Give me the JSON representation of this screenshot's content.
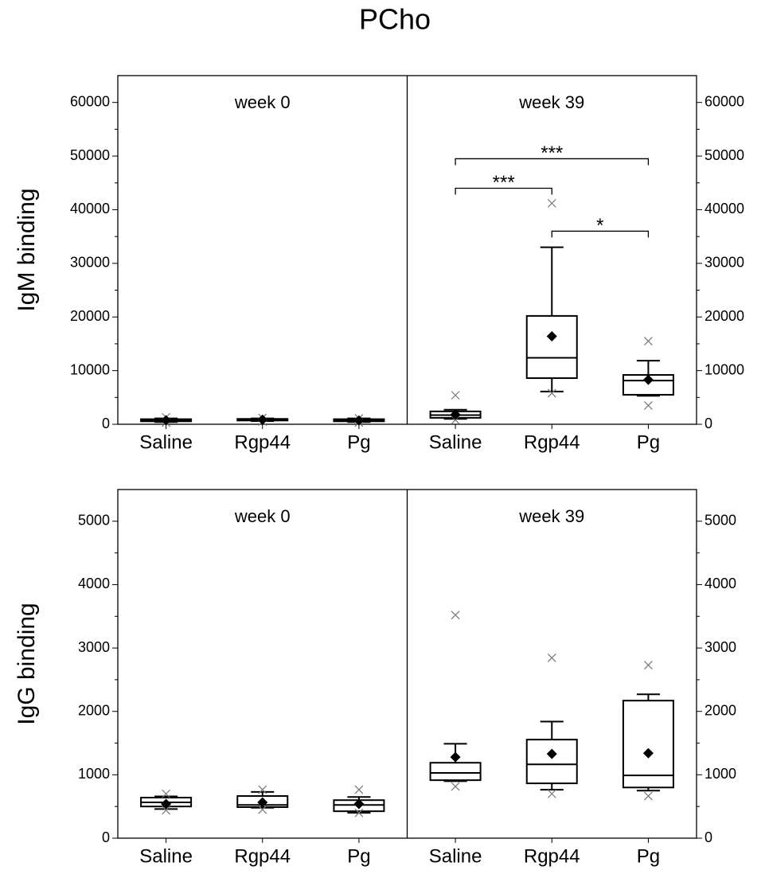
{
  "title": "PCho",
  "chart_data": [
    {
      "type": "box",
      "ylabel": "IgM binding",
      "ylim": [
        0,
        65000
      ],
      "yticks": [
        0,
        10000,
        20000,
        30000,
        40000,
        50000,
        60000
      ],
      "categories": [
        "Saline",
        "Rgp44",
        "Pg"
      ],
      "panels": [
        {
          "label": "week 0",
          "boxes": [
            {
              "whislo": 400,
              "q1": 550,
              "med": 700,
              "q3": 950,
              "whishi": 1100,
              "mean": 750,
              "min": 300,
              "max": 1300
            },
            {
              "whislo": 600,
              "q1": 700,
              "med": 850,
              "q3": 1000,
              "whishi": 1100,
              "mean": 850,
              "min": 500,
              "max": 1200
            },
            {
              "whislo": 400,
              "q1": 550,
              "med": 750,
              "q3": 950,
              "whishi": 1100,
              "mean": 700,
              "min": 300,
              "max": 1100
            }
          ]
        },
        {
          "label": "week 39",
          "boxes": [
            {
              "whislo": 1000,
              "q1": 1200,
              "med": 1700,
              "q3": 2400,
              "whishi": 2700,
              "mean": 1800,
              "min": 800,
              "max": 5400
            },
            {
              "whislo": 6100,
              "q1": 8600,
              "med": 12400,
              "q3": 20200,
              "whishi": 33000,
              "mean": 16400,
              "min": 5800,
              "max": 41200
            },
            {
              "whislo": 5300,
              "q1": 5500,
              "med": 8150,
              "q3": 9200,
              "whishi": 11850,
              "mean": 8300,
              "min": 3500,
              "max": 15500
            }
          ],
          "annotations": [
            {
              "from": "Saline",
              "to": "Rgp44",
              "y": 44000,
              "label": "***"
            },
            {
              "from": "Saline",
              "to": "Pg",
              "y": 49500,
              "label": "***"
            },
            {
              "from": "Rgp44",
              "to": "Pg",
              "y": 36000,
              "label": "*"
            }
          ]
        }
      ]
    },
    {
      "type": "box",
      "ylabel": "IgG binding",
      "ylim": [
        0,
        5500
      ],
      "yticks": [
        0,
        1000,
        2000,
        3000,
        4000,
        5000
      ],
      "categories": [
        "Saline",
        "Rgp44",
        "Pg"
      ],
      "panels": [
        {
          "label": "week 0",
          "boxes": [
            {
              "whislo": 460,
              "q1": 500,
              "med": 565,
              "q3": 640,
              "whishi": 660,
              "mean": 540,
              "min": 440,
              "max": 700
            },
            {
              "whislo": 480,
              "q1": 490,
              "med": 525,
              "q3": 665,
              "whishi": 730,
              "mean": 565,
              "min": 450,
              "max": 765
            },
            {
              "whislo": 400,
              "q1": 425,
              "med": 525,
              "q3": 600,
              "whishi": 650,
              "mean": 540,
              "min": 400,
              "max": 765
            }
          ]
        },
        {
          "label": "week 39",
          "boxes": [
            {
              "whislo": 900,
              "q1": 915,
              "med": 1030,
              "q3": 1190,
              "whishi": 1490,
              "mean": 1280,
              "min": 815,
              "max": 3520
            },
            {
              "whislo": 765,
              "q1": 865,
              "med": 1165,
              "q3": 1555,
              "whishi": 1840,
              "mean": 1330,
              "min": 700,
              "max": 2845
            },
            {
              "whislo": 750,
              "q1": 800,
              "med": 990,
              "q3": 2170,
              "whishi": 2270,
              "mean": 1340,
              "min": 665,
              "max": 2730
            }
          ]
        }
      ]
    }
  ]
}
